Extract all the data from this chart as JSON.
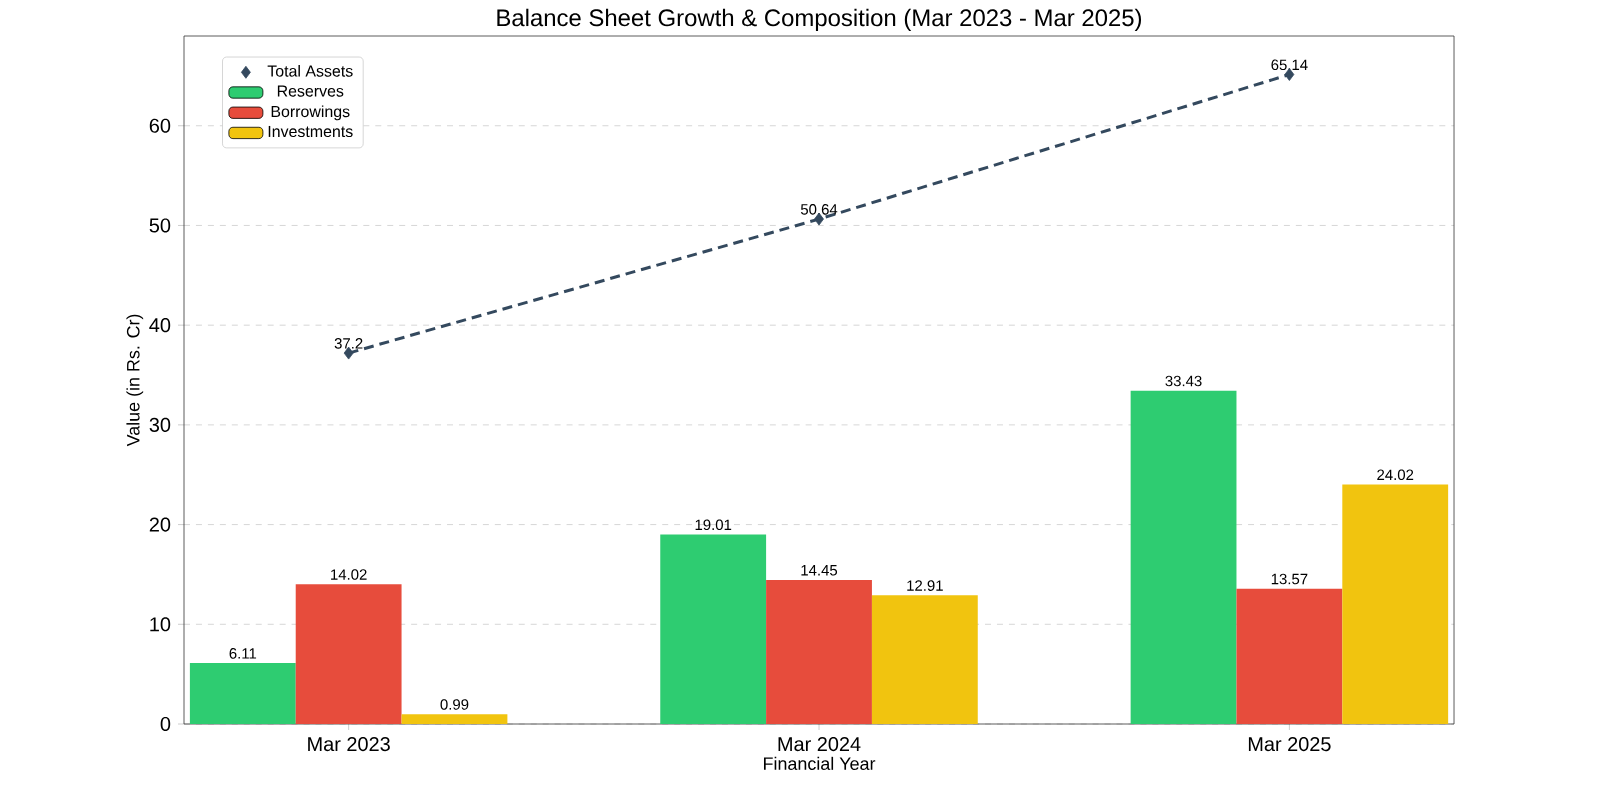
{
  "chart_data": {
    "type": "bar",
    "title": "Balance Sheet Growth & Composition (Mar 2023 - Mar 2025)",
    "xlabel": "Financial Year",
    "ylabel": "Value (in Rs. Cr)",
    "categories": [
      "Mar 2023",
      "Mar 2024",
      "Mar 2025"
    ],
    "series": [
      {
        "name": "Total Assets",
        "type": "line",
        "color": "#34495e",
        "marker": "diamond",
        "line_style": "dashed",
        "values": [
          37.2,
          50.64,
          65.14
        ]
      },
      {
        "name": "Reserves",
        "color": "#2ecc71",
        "values": [
          6.11,
          19.01,
          33.43
        ]
      },
      {
        "name": "Borrowings",
        "color": "#e74c3c",
        "values": [
          14.02,
          14.45,
          13.57
        ]
      },
      {
        "name": "Investments",
        "color": "#f1c40f",
        "values": [
          0.99,
          12.91,
          24.02
        ]
      }
    ],
    "ylim": [
      0,
      69
    ],
    "yticks": [
      0,
      10,
      20,
      30,
      40,
      50,
      60
    ],
    "grid": "y",
    "legend": "top left",
    "data_labels": true
  }
}
